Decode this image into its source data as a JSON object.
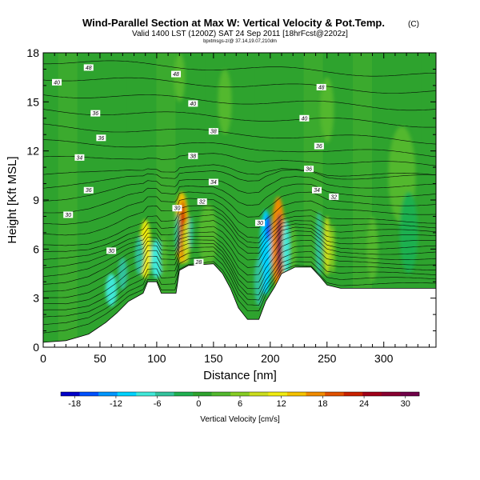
{
  "chart_data": {
    "type": "heatmap",
    "title": "Wind-Parallel Section at Max W: Vertical Velocity & Pot.Temp.",
    "title_mark": "(C)",
    "subtitle": "Valid 1400 LST (1200Z) SAT 24 Sep 2011 [18hrFcst@2202z]",
    "subtitle2": "bpxtmsgs-z/@ 37.14,19.07,210dm",
    "xlabel": "Distance [nm]",
    "ylabel": "Height [Kft MSL]",
    "xlim": [
      0,
      346
    ],
    "ylim": [
      0,
      18
    ],
    "x_ticks": [
      0,
      50,
      100,
      150,
      200,
      250,
      300
    ],
    "y_ticks": [
      0,
      3,
      6,
      9,
      12,
      15,
      18
    ],
    "background_color": "#2ea32e",
    "terrain_color": "#ffffff",
    "contour_color": "#000000",
    "terrain": [
      [
        0,
        0.3
      ],
      [
        20,
        0.4
      ],
      [
        40,
        0.8
      ],
      [
        55,
        1.5
      ],
      [
        65,
        2.1
      ],
      [
        75,
        2.8
      ],
      [
        88,
        3.3
      ],
      [
        92,
        4.0
      ],
      [
        100,
        4.0
      ],
      [
        104,
        3.3
      ],
      [
        117,
        3.3
      ],
      [
        120,
        4.7
      ],
      [
        128,
        5.0
      ],
      [
        150,
        5.1
      ],
      [
        158,
        4.5
      ],
      [
        165,
        3.6
      ],
      [
        172,
        2.4
      ],
      [
        180,
        1.7
      ],
      [
        190,
        1.7
      ],
      [
        196,
        2.8
      ],
      [
        204,
        3.7
      ],
      [
        210,
        4.5
      ],
      [
        222,
        4.9
      ],
      [
        236,
        4.9
      ],
      [
        244,
        4.3
      ],
      [
        250,
        3.8
      ],
      [
        262,
        3.6
      ],
      [
        290,
        3.6
      ],
      [
        346,
        3.6
      ]
    ],
    "contour_labels": [
      {
        "x": 40,
        "y": 17.1,
        "text": "48"
      },
      {
        "x": 12,
        "y": 16.2,
        "text": "40"
      },
      {
        "x": 117,
        "y": 16.7,
        "text": "48"
      },
      {
        "x": 245,
        "y": 15.9,
        "text": "48"
      },
      {
        "x": 132,
        "y": 14.9,
        "text": "40"
      },
      {
        "x": 46,
        "y": 14.3,
        "text": "36"
      },
      {
        "x": 230,
        "y": 14.0,
        "text": "40"
      },
      {
        "x": 150,
        "y": 13.2,
        "text": "38"
      },
      {
        "x": 51,
        "y": 12.8,
        "text": "36"
      },
      {
        "x": 243,
        "y": 12.3,
        "text": "36"
      },
      {
        "x": 132,
        "y": 11.7,
        "text": "38"
      },
      {
        "x": 32,
        "y": 11.6,
        "text": "34"
      },
      {
        "x": 234,
        "y": 10.9,
        "text": "36"
      },
      {
        "x": 150,
        "y": 10.1,
        "text": "34"
      },
      {
        "x": 40,
        "y": 9.6,
        "text": "36"
      },
      {
        "x": 241,
        "y": 9.6,
        "text": "34"
      },
      {
        "x": 256,
        "y": 9.2,
        "text": "32"
      },
      {
        "x": 140,
        "y": 8.9,
        "text": "32"
      },
      {
        "x": 22,
        "y": 8.1,
        "text": "30"
      },
      {
        "x": 118,
        "y": 8.5,
        "text": "30"
      },
      {
        "x": 191,
        "y": 7.6,
        "text": "30"
      },
      {
        "x": 60,
        "y": 5.9,
        "text": "30"
      },
      {
        "x": 137,
        "y": 5.2,
        "text": "28"
      }
    ],
    "velocity_cells": [
      {
        "x": 90,
        "y": 6.0,
        "value": 12,
        "rx": 5,
        "ry": 1.8
      },
      {
        "x": 85,
        "y": 5.6,
        "value": -6,
        "rx": 4,
        "ry": 1.2
      },
      {
        "x": 100,
        "y": 5.4,
        "value": -8,
        "rx": 5,
        "ry": 1.2
      },
      {
        "x": 106,
        "y": 5.6,
        "value": 4,
        "rx": 3,
        "ry": 1.2
      },
      {
        "x": 122,
        "y": 7.3,
        "value": 14,
        "rx": 6,
        "ry": 2.2
      },
      {
        "x": 123,
        "y": 7.2,
        "value": 22,
        "rx": 2.5,
        "ry": 1.8
      },
      {
        "x": 126,
        "y": 6.4,
        "value": 10,
        "rx": 3,
        "ry": 1.3
      },
      {
        "x": 118,
        "y": 7.0,
        "value": -6,
        "rx": 2,
        "ry": 1.2
      },
      {
        "x": 130,
        "y": 7.0,
        "value": -4,
        "rx": 2,
        "ry": 1.0
      },
      {
        "x": 145,
        "y": 6.8,
        "value": 2,
        "rx": 8,
        "ry": 2.0
      },
      {
        "x": 196,
        "y": 5.8,
        "value": -10,
        "rx": 5,
        "ry": 2.6
      },
      {
        "x": 198,
        "y": 7.3,
        "value": -17,
        "rx": 2,
        "ry": 0.8
      },
      {
        "x": 190,
        "y": 4.0,
        "value": -6,
        "rx": 4,
        "ry": 1.5
      },
      {
        "x": 207,
        "y": 6.4,
        "value": 16,
        "rx": 6,
        "ry": 2.8
      },
      {
        "x": 208,
        "y": 6.2,
        "value": 30,
        "rx": 2.2,
        "ry": 2.0
      },
      {
        "x": 214,
        "y": 6.0,
        "value": -8,
        "rx": 3,
        "ry": 1.8
      },
      {
        "x": 220,
        "y": 6.0,
        "value": 4,
        "rx": 3,
        "ry": 1.5
      },
      {
        "x": 243,
        "y": 6.3,
        "value": -6,
        "rx": 3,
        "ry": 2.0
      },
      {
        "x": 250,
        "y": 6.2,
        "value": 10,
        "rx": 3,
        "ry": 1.8
      },
      {
        "x": 255,
        "y": 6.0,
        "value": 6,
        "rx": 2,
        "ry": 1.5
      },
      {
        "x": 290,
        "y": 6.0,
        "value": 4,
        "rx": 5,
        "ry": 2.0
      },
      {
        "x": 316,
        "y": 10.5,
        "value": 2,
        "rx": 12,
        "ry": 3.0
      },
      {
        "x": 322,
        "y": 7.0,
        "value": -3,
        "rx": 8,
        "ry": 2.5
      },
      {
        "x": 60,
        "y": 3.5,
        "value": -7,
        "rx": 5,
        "ry": 1.0
      },
      {
        "x": 70,
        "y": 4.5,
        "value": -6,
        "rx": 4,
        "ry": 1.0
      },
      {
        "x": 120,
        "y": 16.5,
        "value": 3,
        "rx": 5,
        "ry": 1.5
      },
      {
        "x": 160,
        "y": 15.0,
        "value": 2,
        "rx": 6,
        "ry": 2.0
      },
      {
        "x": 250,
        "y": 14.5,
        "value": 2,
        "rx": 6,
        "ry": 2.0
      }
    ],
    "colorbar": {
      "label": "Vertical Velocity [cm/s]",
      "min": -20,
      "max": 32,
      "tick_values": [
        -18,
        -12,
        -6,
        0,
        6,
        12,
        18,
        24,
        30
      ],
      "tick_labels": [
        "-18",
        "-12",
        "-6",
        "0",
        "6",
        "12",
        "18",
        "24",
        "30"
      ],
      "colors": [
        "#0000c8",
        "#0050ff",
        "#0096ff",
        "#00d2ff",
        "#40e8d8",
        "#33c29c",
        "#1fb050",
        "#2ea32e",
        "#52b82e",
        "#86cc23",
        "#cadd1c",
        "#f0eb10",
        "#f5c100",
        "#f08a00",
        "#e05000",
        "#c82000",
        "#a00018",
        "#880030",
        "#700048"
      ]
    }
  }
}
